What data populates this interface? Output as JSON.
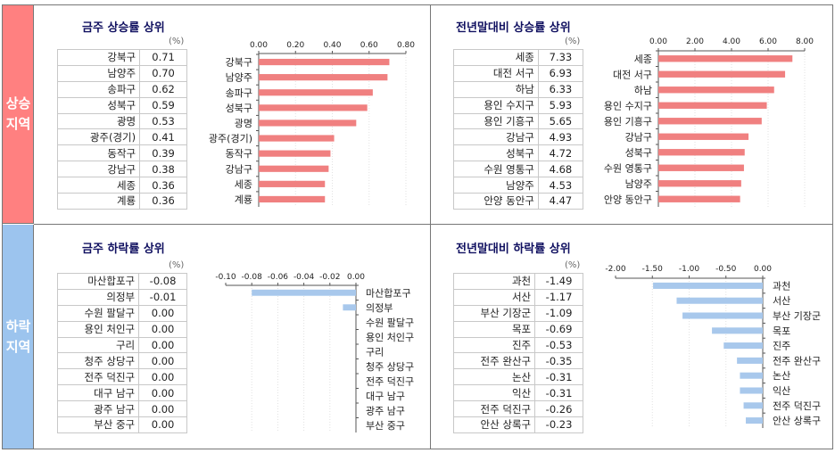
{
  "side_labels": {
    "top": "상승지역",
    "bottom": "하락지역"
  },
  "unit": "(%)",
  "panels": [
    {
      "id": "week-up",
      "title": "금주 상승률 상위",
      "rows": [
        {
          "name": "강북구",
          "value": "0.71"
        },
        {
          "name": "남양주",
          "value": "0.70"
        },
        {
          "name": "송파구",
          "value": "0.62"
        },
        {
          "name": "성북구",
          "value": "0.59"
        },
        {
          "name": "광명",
          "value": "0.53"
        },
        {
          "name": "광주(경기)",
          "value": "0.41"
        },
        {
          "name": "동작구",
          "value": "0.39"
        },
        {
          "name": "강남구",
          "value": "0.38"
        },
        {
          "name": "세종",
          "value": "0.36"
        },
        {
          "name": "계룡",
          "value": "0.36"
        }
      ]
    },
    {
      "id": "year-up",
      "title": "전년말대비 상승률 상위",
      "rows": [
        {
          "name": "세종",
          "value": "7.33"
        },
        {
          "name": "대전 서구",
          "value": "6.93"
        },
        {
          "name": "하남",
          "value": "6.33"
        },
        {
          "name": "용인 수지구",
          "value": "5.93"
        },
        {
          "name": "용인 기흥구",
          "value": "5.65"
        },
        {
          "name": "강남구",
          "value": "4.93"
        },
        {
          "name": "성북구",
          "value": "4.72"
        },
        {
          "name": "수원 영통구",
          "value": "4.68"
        },
        {
          "name": "남양주",
          "value": "4.53"
        },
        {
          "name": "안양 동안구",
          "value": "4.47"
        }
      ]
    },
    {
      "id": "week-down",
      "title": "금주 하락률 상위",
      "rows": [
        {
          "name": "마산합포구",
          "value": "-0.08"
        },
        {
          "name": "의정부",
          "value": "-0.01"
        },
        {
          "name": "수원 팔달구",
          "value": "0.00"
        },
        {
          "name": "용인 처인구",
          "value": "0.00"
        },
        {
          "name": "구리",
          "value": "0.00"
        },
        {
          "name": "청주 상당구",
          "value": "0.00"
        },
        {
          "name": "전주 덕진구",
          "value": "0.00"
        },
        {
          "name": "대구 남구",
          "value": "0.00"
        },
        {
          "name": "광주 남구",
          "value": "0.00"
        },
        {
          "name": "부산 중구",
          "value": "0.00"
        }
      ]
    },
    {
      "id": "year-down",
      "title": "전년말대비 하락률 상위",
      "rows": [
        {
          "name": "과천",
          "value": "-1.49"
        },
        {
          "name": "서산",
          "value": "-1.17"
        },
        {
          "name": "부산 기장군",
          "value": "-1.09"
        },
        {
          "name": "목포",
          "value": "-0.69"
        },
        {
          "name": "진주",
          "value": "-0.53"
        },
        {
          "name": "전주 완산구",
          "value": "-0.35"
        },
        {
          "name": "논산",
          "value": "-0.31"
        },
        {
          "name": "익산",
          "value": "-0.31"
        },
        {
          "name": "전주 덕진구",
          "value": "-0.26"
        },
        {
          "name": "안산 상록구",
          "value": "-0.23"
        }
      ]
    }
  ],
  "chart_data": [
    {
      "type": "bar",
      "orientation": "horizontal",
      "title": "금주 상승률 상위",
      "categories": [
        "강북구",
        "남양주",
        "송파구",
        "성북구",
        "광명",
        "광주(경기)",
        "동작구",
        "강남구",
        "세종",
        "계룡"
      ],
      "values": [
        0.71,
        0.7,
        0.62,
        0.59,
        0.53,
        0.41,
        0.39,
        0.38,
        0.36,
        0.36
      ],
      "xlim": [
        0,
        0.8
      ],
      "ticks": [
        "0.00",
        "0.20",
        "0.40",
        "0.60",
        "0.80"
      ],
      "color": "#f08080",
      "axis_position": "top",
      "label_side": "left"
    },
    {
      "type": "bar",
      "orientation": "horizontal",
      "title": "전년말대비 상승률 상위",
      "categories": [
        "세종",
        "대전 서구",
        "하남",
        "용인 수지구",
        "용인 기흥구",
        "강남구",
        "성북구",
        "수원 영통구",
        "남양주",
        "안양 동안구"
      ],
      "values": [
        7.33,
        6.93,
        6.33,
        5.93,
        5.65,
        4.93,
        4.72,
        4.68,
        4.53,
        4.47
      ],
      "xlim": [
        0,
        8
      ],
      "ticks": [
        "0.00",
        "2.00",
        "4.00",
        "6.00",
        "8.00"
      ],
      "color": "#f08080",
      "axis_position": "top",
      "label_side": "left"
    },
    {
      "type": "bar",
      "orientation": "horizontal",
      "title": "금주 하락률 상위",
      "categories": [
        "마산합포구",
        "의정부",
        "수원 팔달구",
        "용인 처인구",
        "구리",
        "청주 상당구",
        "전주 덕진구",
        "대구 남구",
        "광주 남구",
        "부산 중구"
      ],
      "values": [
        -0.08,
        -0.01,
        0.0,
        0.0,
        0.0,
        0.0,
        0.0,
        0.0,
        0.0,
        0.0
      ],
      "xlim": [
        -0.1,
        0
      ],
      "ticks": [
        "-0.10",
        "-0.08",
        "-0.06",
        "-0.04",
        "-0.02",
        "0.00"
      ],
      "color": "#a8c8ec",
      "axis_position": "top",
      "label_side": "right"
    },
    {
      "type": "bar",
      "orientation": "horizontal",
      "title": "전년말대비 하락률 상위",
      "categories": [
        "과천",
        "서산",
        "부산 기장군",
        "목포",
        "진주",
        "전주 완산구",
        "논산",
        "익산",
        "전주 덕진구",
        "안산 상록구"
      ],
      "values": [
        -1.49,
        -1.17,
        -1.09,
        -0.69,
        -0.53,
        -0.35,
        -0.31,
        -0.31,
        -0.26,
        -0.23
      ],
      "xlim": [
        -2,
        0
      ],
      "ticks": [
        "-2.00",
        "-1.50",
        "-1.00",
        "-0.50",
        "0.00"
      ],
      "color": "#a8c8ec",
      "axis_position": "top",
      "label_side": "right"
    }
  ]
}
